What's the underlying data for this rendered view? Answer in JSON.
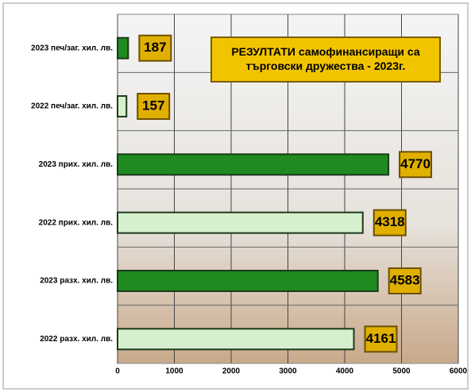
{
  "chart_data": {
    "type": "hbar",
    "title": "РЕЗУЛТАТИ самофинансиращи са търговски дружества - 2023г.",
    "categories": [
      "2023   печ/заг. хил. лв.",
      "2022   печ/заг. хил. лв.",
      "2023  прих. хил. лв.",
      "2022  прих. хил. лв.",
      "2023 разх. хил. лв.",
      "2022 разх. хил. лв."
    ],
    "values": [
      187,
      157,
      4770,
      4318,
      4583,
      4161
    ],
    "colors": [
      "#1f8a1f",
      "#d6f0cf",
      "#1f8a1f",
      "#d6f0cf",
      "#1f8a1f",
      "#d6f0cf"
    ],
    "xlim": [
      0,
      6000
    ],
    "xticks": [
      0,
      1000,
      2000,
      3000,
      4000,
      5000,
      6000
    ],
    "grid": true
  }
}
